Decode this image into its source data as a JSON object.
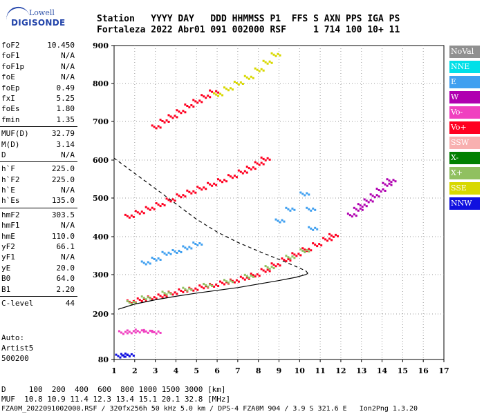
{
  "logo": {
    "line1": "Lowell",
    "line2": "DIGISONDE"
  },
  "header": {
    "line1": "Station   YYYY DAY   DDD HHMMSS P1  FFS S AXN PPS IGA PS",
    "line2": "Fortaleza 2022 Abr01 091 002000 RSF     1 714 100 10+ 11"
  },
  "params": [
    [
      {
        "k": "foF2",
        "v": "10.450"
      },
      {
        "k": "foF1",
        "v": "N/A"
      },
      {
        "k": "foF1p",
        "v": "N/A"
      },
      {
        "k": "foE",
        "v": "N/A"
      },
      {
        "k": "foEp",
        "v": "0.49"
      },
      {
        "k": "fxI",
        "v": "5.25"
      },
      {
        "k": "foEs",
        "v": "1.80"
      },
      {
        "k": "fmin",
        "v": "1.35"
      }
    ],
    [
      {
        "k": "MUF(D)",
        "v": "32.79"
      },
      {
        "k": "M(D)",
        "v": "3.14"
      },
      {
        "k": "D",
        "v": "N/A"
      }
    ],
    [
      {
        "k": "h`F",
        "v": "225.0"
      },
      {
        "k": "h`F2",
        "v": "225.0"
      },
      {
        "k": "h`E",
        "v": "N/A"
      },
      {
        "k": "h`Es",
        "v": "135.0"
      }
    ],
    [
      {
        "k": "hmF2",
        "v": "303.5"
      },
      {
        "k": "hmF1",
        "v": "N/A"
      },
      {
        "k": "hmE",
        "v": "110.0"
      },
      {
        "k": "yF2",
        "v": "66.1"
      },
      {
        "k": "yF1",
        "v": "N/A"
      },
      {
        "k": "yE",
        "v": "20.0"
      },
      {
        "k": "B0",
        "v": "64.0"
      },
      {
        "k": "B1",
        "v": "2.20"
      }
    ],
    [
      {
        "k": "C-level",
        "v": "44"
      }
    ]
  ],
  "auto": {
    "line1": "Auto:",
    "line2": "Artist5",
    "line3": "500200"
  },
  "legend": [
    {
      "label": "NoVal",
      "color": "#909090"
    },
    {
      "label": "NNE",
      "color": "#00e0e8"
    },
    {
      "label": "E",
      "color": "#40a0f0"
    },
    {
      "label": "W",
      "color": "#b000b0"
    },
    {
      "label": "Vo-",
      "color": "#f040c0"
    },
    {
      "label": "Vo+",
      "color": "#ff0020"
    },
    {
      "label": "SSW",
      "color": "#f8b0b0"
    },
    {
      "label": "X-",
      "color": "#008000"
    },
    {
      "label": "X+",
      "color": "#90c060"
    },
    {
      "label": "SSE",
      "color": "#d8d800"
    },
    {
      "label": "NNW",
      "color": "#1010e0"
    }
  ],
  "footer": {
    "line1": "D     100  200  400  600  800 1000 1500 3000 [km]",
    "line2": "MUF  10.8 10.9 11.4 12.3 13.4 15.1 20.1 32.8 [MHz]",
    "line3": "FZA0M_2022091002000.RSF / 320fx256h 50 kHz 5.0 km / DPS-4 FZA0M 904 / 3.9 S 321.6 E   Ion2Png 1.3.20"
  },
  "chart_data": {
    "type": "scatter",
    "x_ticks": [
      1,
      2,
      3,
      4,
      5,
      6,
      7,
      8,
      9,
      10,
      11,
      12,
      13,
      14,
      15,
      16,
      17
    ],
    "y_ticks": [
      80,
      200,
      300,
      400,
      500,
      600,
      700,
      800,
      900
    ],
    "xlim": [
      1,
      17
    ],
    "ylim": [
      80,
      900
    ],
    "grid": "dotted",
    "traces": [
      {
        "name": "o-trace",
        "color": "#ff0020",
        "points": [
          [
            1.8,
            230
          ],
          [
            2.3,
            235
          ],
          [
            2.8,
            240
          ],
          [
            3.3,
            245
          ],
          [
            3.8,
            252
          ],
          [
            4.3,
            258
          ],
          [
            4.8,
            262
          ],
          [
            5.3,
            268
          ],
          [
            5.8,
            272
          ],
          [
            6.3,
            278
          ],
          [
            6.8,
            283
          ],
          [
            7.3,
            290
          ],
          [
            7.8,
            298
          ],
          [
            8.3,
            310
          ],
          [
            8.8,
            325
          ],
          [
            9.3,
            338
          ],
          [
            9.8,
            352
          ],
          [
            10.3,
            365
          ],
          [
            10.8,
            378
          ],
          [
            11.3,
            392
          ],
          [
            11.6,
            402
          ]
        ]
      },
      {
        "name": "x-trace",
        "color": "#90c060",
        "points": [
          [
            1.8,
            228
          ],
          [
            2.5,
            240
          ],
          [
            3.5,
            252
          ],
          [
            4.5,
            262
          ],
          [
            5.5,
            272
          ],
          [
            6.5,
            282
          ],
          [
            7.5,
            295
          ],
          [
            8.5,
            318
          ],
          [
            9.5,
            345
          ],
          [
            10.2,
            362
          ]
        ]
      },
      {
        "name": "2F",
        "color": "#ff0020",
        "points": [
          [
            1.7,
            452
          ],
          [
            2.2,
            462
          ],
          [
            2.7,
            472
          ],
          [
            3.2,
            482
          ],
          [
            3.7,
            494
          ],
          [
            4.2,
            505
          ],
          [
            4.7,
            515
          ],
          [
            5.2,
            525
          ],
          [
            5.7,
            535
          ],
          [
            6.2,
            545
          ],
          [
            6.7,
            556
          ],
          [
            7.2,
            568
          ],
          [
            7.6,
            578
          ],
          [
            8.0,
            590
          ],
          [
            8.3,
            602
          ]
        ]
      },
      {
        "name": "3F",
        "color": "#ff0020",
        "points": [
          [
            3.0,
            685
          ],
          [
            3.4,
            700
          ],
          [
            3.8,
            712
          ],
          [
            4.2,
            725
          ],
          [
            4.6,
            740
          ],
          [
            5.0,
            752
          ],
          [
            5.4,
            765
          ],
          [
            5.8,
            777
          ]
        ]
      },
      {
        "name": "Es",
        "color": "#f040c0",
        "points": [
          [
            1.4,
            150
          ],
          [
            1.8,
            152
          ],
          [
            2.2,
            154
          ],
          [
            2.6,
            153
          ],
          [
            3.0,
            151
          ]
        ]
      },
      {
        "name": "low",
        "color": "#1010e0",
        "points": [
          [
            1.25,
            88
          ],
          [
            1.5,
            90
          ],
          [
            1.7,
            91
          ]
        ]
      },
      {
        "name": "right",
        "color": "#b000b0",
        "points": [
          [
            12.5,
            455
          ],
          [
            12.8,
            470
          ],
          [
            13.0,
            480
          ],
          [
            13.3,
            492
          ],
          [
            13.6,
            505
          ],
          [
            13.9,
            520
          ],
          [
            14.2,
            535
          ],
          [
            14.4,
            545
          ]
        ]
      },
      {
        "name": "upper",
        "color": "#d8d800",
        "points": [
          [
            6.0,
            770
          ],
          [
            6.5,
            785
          ],
          [
            7.0,
            800
          ],
          [
            7.5,
            815
          ],
          [
            8.0,
            835
          ],
          [
            8.4,
            855
          ],
          [
            8.8,
            875
          ]
        ]
      },
      {
        "name": "scatter",
        "color": "#40a0f0",
        "points": [
          [
            2.5,
            330
          ],
          [
            3.0,
            340
          ],
          [
            3.5,
            355
          ],
          [
            4.0,
            360
          ],
          [
            4.5,
            370
          ],
          [
            5.0,
            380
          ],
          [
            9.0,
            440
          ],
          [
            9.5,
            470
          ],
          [
            10.2,
            510
          ],
          [
            10.6,
            420
          ],
          [
            10.5,
            470
          ]
        ]
      }
    ],
    "profile": {
      "color": "#000",
      "points": [
        [
          1.2,
          212
        ],
        [
          2.0,
          225
        ],
        [
          3.0,
          236
        ],
        [
          4.0,
          245
        ],
        [
          5.0,
          253
        ],
        [
          6.0,
          260
        ],
        [
          7.0,
          267
        ],
        [
          8.0,
          276
        ],
        [
          9.0,
          285
        ],
        [
          9.8,
          293
        ],
        [
          10.3,
          300
        ],
        [
          10.4,
          303.5
        ],
        [
          10.3,
          310
        ],
        [
          9.8,
          322
        ],
        [
          9.0,
          340
        ],
        [
          8.0,
          362
        ],
        [
          7.0,
          385
        ],
        [
          6.0,
          412
        ],
        [
          5.0,
          445
        ],
        [
          4.0,
          485
        ],
        [
          3.0,
          525
        ],
        [
          2.0,
          565
        ],
        [
          1.0,
          605
        ]
      ]
    }
  }
}
